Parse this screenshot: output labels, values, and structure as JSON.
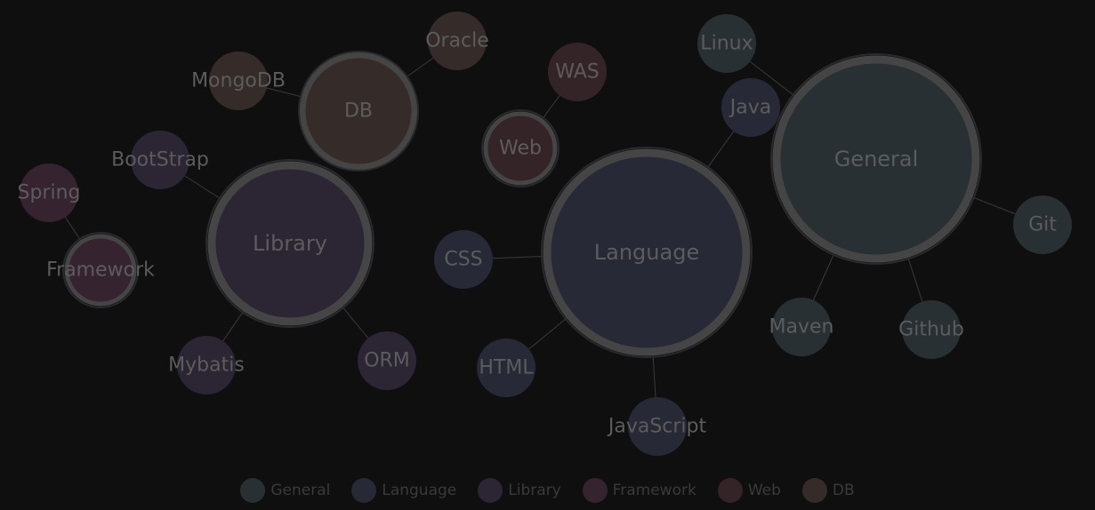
{
  "categories": [
    {
      "id": "general",
      "label": "General",
      "color": "#283033"
    },
    {
      "id": "language",
      "label": "Language",
      "color": "#282936"
    },
    {
      "id": "library",
      "label": "Library",
      "color": "#2c2533"
    },
    {
      "id": "framework",
      "label": "Framework",
      "color": "#35232f"
    },
    {
      "id": "web",
      "label": "Web",
      "color": "#352427"
    },
    {
      "id": "db",
      "label": "DB",
      "color": "#352c29"
    }
  ],
  "nodes": [
    {
      "id": "general",
      "label": "General",
      "category": "general",
      "hub": true
    },
    {
      "id": "linux",
      "label": "Linux",
      "category": "general"
    },
    {
      "id": "git",
      "label": "Git",
      "category": "general"
    },
    {
      "id": "maven",
      "label": "Maven",
      "category": "general"
    },
    {
      "id": "github",
      "label": "Github",
      "category": "general"
    },
    {
      "id": "language",
      "label": "Language",
      "category": "language",
      "hub": true
    },
    {
      "id": "java",
      "label": "Java",
      "category": "language"
    },
    {
      "id": "css",
      "label": "CSS",
      "category": "language"
    },
    {
      "id": "html",
      "label": "HTML",
      "category": "language"
    },
    {
      "id": "javascript",
      "label": "JavaScript",
      "category": "language"
    },
    {
      "id": "library",
      "label": "Library",
      "category": "library",
      "hub": true
    },
    {
      "id": "bootstrap",
      "label": "BootStrap",
      "category": "library"
    },
    {
      "id": "mybatis",
      "label": "Mybatis",
      "category": "library"
    },
    {
      "id": "orm",
      "label": "ORM",
      "category": "library"
    },
    {
      "id": "framework",
      "label": "Framework",
      "category": "framework",
      "hub": true
    },
    {
      "id": "spring",
      "label": "Spring",
      "category": "framework"
    },
    {
      "id": "web",
      "label": "Web",
      "category": "web",
      "hub": true
    },
    {
      "id": "was",
      "label": "WAS",
      "category": "web"
    },
    {
      "id": "db",
      "label": "DB",
      "category": "db",
      "hub": true
    },
    {
      "id": "mongodb",
      "label": "MongoDB",
      "category": "db"
    },
    {
      "id": "oracle",
      "label": "Oracle",
      "category": "db"
    }
  ],
  "links": [
    [
      "general",
      "linux"
    ],
    [
      "general",
      "git"
    ],
    [
      "general",
      "maven"
    ],
    [
      "general",
      "github"
    ],
    [
      "language",
      "java"
    ],
    [
      "language",
      "css"
    ],
    [
      "language",
      "html"
    ],
    [
      "language",
      "javascript"
    ],
    [
      "library",
      "bootstrap"
    ],
    [
      "library",
      "mybatis"
    ],
    [
      "library",
      "orm"
    ],
    [
      "framework",
      "spring"
    ],
    [
      "web",
      "was"
    ],
    [
      "db",
      "mongodb"
    ],
    [
      "db",
      "oracle"
    ]
  ]
}
